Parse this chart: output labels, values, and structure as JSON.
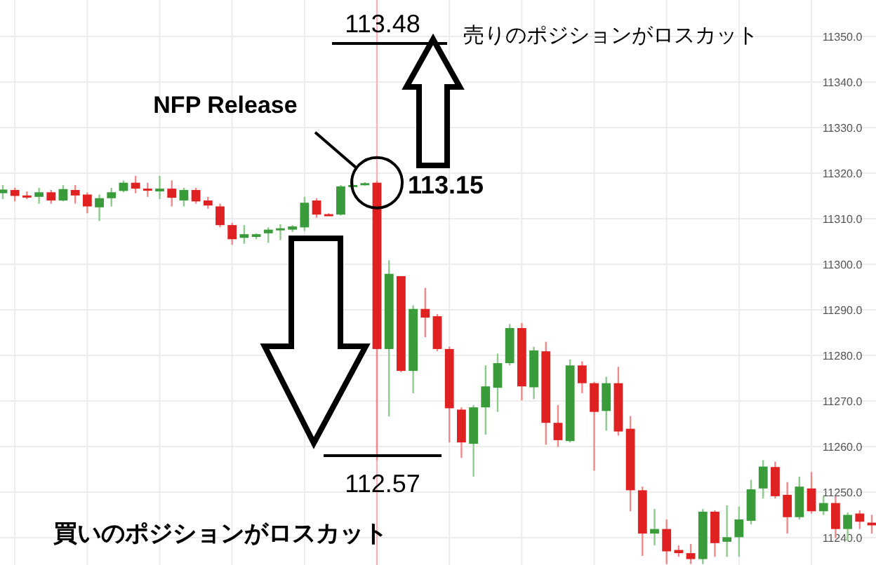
{
  "chart_data": {
    "type": "candlestick",
    "categories": [
      null,
      null,
      null,
      null,
      null,
      null,
      null,
      null,
      null,
      null,
      null,
      null,
      null,
      null,
      null,
      null,
      null,
      null,
      null,
      null,
      null,
      null,
      null,
      null,
      null,
      null,
      null,
      null,
      null,
      null,
      null,
      null,
      null,
      null,
      null,
      null,
      null,
      null,
      null,
      null,
      null,
      null,
      null,
      null,
      null,
      null,
      null,
      null,
      null,
      null,
      null,
      null,
      null,
      null,
      null,
      null,
      null,
      null,
      null,
      null,
      null,
      null,
      null,
      null,
      null,
      null,
      null,
      null,
      null,
      null,
      null,
      null,
      null
    ],
    "ohlc": [
      [
        11315.6,
        11317.4,
        11314.3,
        11316.4
      ],
      [
        11316.3,
        11316.8,
        11313.8,
        11315.0
      ],
      [
        11315.1,
        11316.0,
        11314.3,
        11314.9
      ],
      [
        11314.8,
        11316.8,
        11313.3,
        11315.8
      ],
      [
        11315.8,
        11316.3,
        11313.3,
        11314.0
      ],
      [
        11314.0,
        11317.4,
        11313.8,
        11316.5
      ],
      [
        11316.3,
        11317.4,
        11313.3,
        11315.1
      ],
      [
        11315.3,
        11315.8,
        11311.2,
        11312.7
      ],
      [
        11312.5,
        11315.3,
        11309.5,
        11314.5
      ],
      [
        11314.5,
        11316.8,
        11312.7,
        11315.8
      ],
      [
        11316.1,
        11318.4,
        11315.8,
        11317.9
      ],
      [
        11317.9,
        11319.4,
        11315.6,
        11316.6
      ],
      [
        11316.6,
        11317.9,
        11314.8,
        11316.4
      ],
      [
        11316.0,
        11319.4,
        11314.3,
        11316.6
      ],
      [
        11316.6,
        11318.4,
        11312.7,
        11314.6
      ],
      [
        11314.0,
        11316.8,
        11312.7,
        11316.3
      ],
      [
        11316.3,
        11316.8,
        11313.3,
        11313.8
      ],
      [
        11314.0,
        11314.8,
        11312.2,
        11312.9
      ],
      [
        11312.7,
        11313.3,
        11308.1,
        11308.6
      ],
      [
        11308.6,
        11309.1,
        11304.3,
        11305.5
      ],
      [
        11305.8,
        11308.6,
        11304.5,
        11306.6
      ],
      [
        11306.0,
        11306.8,
        11305.5,
        11306.6
      ],
      [
        11306.8,
        11308.1,
        11304.7,
        11307.6
      ],
      [
        11307.6,
        11308.8,
        11305.3,
        11307.9
      ],
      [
        11307.6,
        11308.6,
        11307.1,
        11308.3
      ],
      [
        11308.1,
        11314.8,
        11307.3,
        11313.5
      ],
      [
        11314.0,
        11314.5,
        11310.2,
        11310.9
      ],
      [
        11311.0,
        11311.2,
        11310.7,
        11310.9
      ],
      [
        11310.9,
        11317.4,
        11310.7,
        11317.1
      ],
      [
        11317.1,
        11318.4,
        11315.8,
        11317.4
      ],
      [
        11317.5,
        11318.0,
        11317.3,
        11317.8
      ],
      [
        11317.9,
        11318.4,
        11257.0,
        11281.4
      ],
      [
        11281.4,
        11300.9,
        11266.6,
        11297.9
      ],
      [
        11297.4,
        11297.4,
        11276.3,
        11276.6
      ],
      [
        11276.6,
        11291.0,
        11271.7,
        11290.2
      ],
      [
        11290.2,
        11294.8,
        11284.0,
        11288.3
      ],
      [
        11288.6,
        11289.1,
        11280.9,
        11281.4
      ],
      [
        11281.4,
        11281.9,
        11260.9,
        11268.4
      ],
      [
        11268.1,
        11268.6,
        11257.5,
        11260.9
      ],
      [
        11260.6,
        11269.1,
        11253.4,
        11268.6
      ],
      [
        11268.6,
        11277.8,
        11262.6,
        11273.2
      ],
      [
        11272.9,
        11280.4,
        11267.6,
        11278.3
      ],
      [
        11278.3,
        11286.9,
        11277.8,
        11286.0
      ],
      [
        11286.0,
        11287.1,
        11270.1,
        11273.2
      ],
      [
        11273.0,
        11281.9,
        11270.4,
        11281.1
      ],
      [
        11280.9,
        11283.0,
        11260.4,
        11265.2
      ],
      [
        11265.2,
        11269.1,
        11259.9,
        11261.4
      ],
      [
        11261.2,
        11279.1,
        11260.9,
        11277.8
      ],
      [
        11277.8,
        11278.7,
        11271.7,
        11273.9
      ],
      [
        11273.9,
        11274.2,
        11254.7,
        11267.6
      ],
      [
        11267.8,
        11275.3,
        11263.5,
        11273.9
      ],
      [
        11273.9,
        11277.5,
        11262.4,
        11263.3
      ],
      [
        11263.9,
        11266.7,
        11245.8,
        11250.4
      ],
      [
        11250.4,
        11251.2,
        11236.0,
        11240.9
      ],
      [
        11240.9,
        11246.3,
        11238.3,
        11241.9
      ],
      [
        11241.9,
        11244.0,
        11234.2,
        11237.0
      ],
      [
        11237.3,
        11238.3,
        11235.8,
        11236.6
      ],
      [
        11236.6,
        11238.6,
        11234.2,
        11235.3
      ],
      [
        11235.3,
        11246.3,
        11234.2,
        11245.7
      ],
      [
        11245.7,
        11246.0,
        11235.8,
        11238.8
      ],
      [
        11239.1,
        11247.1,
        11235.8,
        11240.1
      ],
      [
        11240.1,
        11246.8,
        11235.8,
        11244.0
      ],
      [
        11243.7,
        11252.7,
        11242.9,
        11250.6
      ],
      [
        11250.8,
        11257.0,
        11248.6,
        11255.6
      ],
      [
        11255.5,
        11256.7,
        11248.6,
        11249.1
      ],
      [
        11249.4,
        11252.2,
        11240.9,
        11244.5
      ],
      [
        11244.5,
        11253.4,
        11244.0,
        11251.2
      ],
      [
        11250.8,
        11254.4,
        11245.3,
        11245.8
      ],
      [
        11245.8,
        11249.1,
        11245.0,
        11247.6
      ],
      [
        11247.6,
        11249.1,
        11239.9,
        11241.9
      ],
      [
        11241.9,
        11245.5,
        11239.4,
        11245.0
      ],
      [
        11245.3,
        11246.0,
        11241.9,
        11243.5
      ],
      [
        11243.3,
        11245.0,
        11240.9,
        11242.7
      ]
    ],
    "ylim": [
      11234,
      11358
    ],
    "yticks": [
      {
        "value": 11240,
        "label": "11240.0"
      },
      {
        "value": 11250,
        "label": "11250.0"
      },
      {
        "value": 11260,
        "label": "11260.0"
      },
      {
        "value": 11270,
        "label": "11270.0"
      },
      {
        "value": 11280,
        "label": "11280.0"
      },
      {
        "value": 11290,
        "label": "11290.0"
      },
      {
        "value": 11300,
        "label": "11300.0"
      },
      {
        "value": 11310,
        "label": "11310.0"
      },
      {
        "value": 11320,
        "label": "11320.0"
      },
      {
        "value": 11330,
        "label": "11330.0"
      },
      {
        "value": 11340,
        "label": "11340.0"
      },
      {
        "value": 11350,
        "label": "11350.0"
      }
    ],
    "grid": true,
    "annotations": [
      "113.48",
      "113.15",
      "112.57",
      "NFP Release",
      "売りのポジションがロスカット",
      "買いのポジションがロスカット"
    ]
  }
}
